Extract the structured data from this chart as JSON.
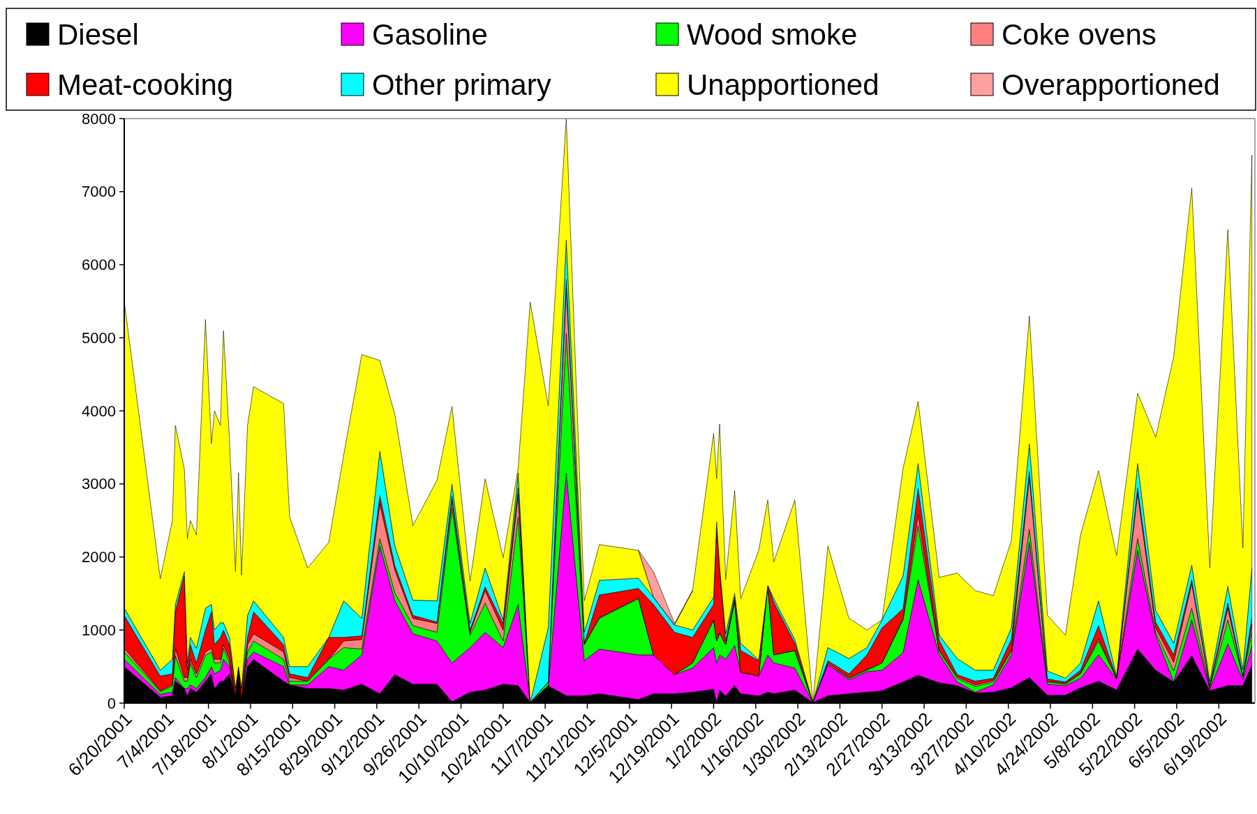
{
  "chart_data": {
    "type": "area",
    "stacked": true,
    "legend": "top",
    "grid": false,
    "x": [
      "2001-06-20",
      "2001-07-02",
      "2001-07-06",
      "2001-07-07",
      "2001-07-10",
      "2001-07-11",
      "2001-07-12",
      "2001-07-14",
      "2001-07-17",
      "2001-07-19",
      "2001-07-20",
      "2001-07-22",
      "2001-07-23",
      "2001-07-25",
      "2001-07-27",
      "2001-07-28",
      "2001-07-29",
      "2001-07-31",
      "2001-08-02",
      "2001-08-12",
      "2001-08-14",
      "2001-08-20",
      "2001-08-27",
      "2001-09-01",
      "2001-09-07",
      "2001-09-13",
      "2001-09-18",
      "2001-09-24",
      "2001-10-02",
      "2001-10-07",
      "2001-10-13",
      "2001-10-18",
      "2001-10-24",
      "2001-10-29",
      "2001-11-02",
      "2001-11-08",
      "2001-11-14",
      "2001-11-20",
      "2001-11-25",
      "2001-12-08",
      "2001-12-13",
      "2001-12-20",
      "2001-12-26",
      "2002-01-02",
      "2002-01-03",
      "2002-01-04",
      "2002-01-06",
      "2002-01-09",
      "2002-01-11",
      "2002-01-17",
      "2002-01-20",
      "2002-01-22",
      "2002-01-29",
      "2002-02-04",
      "2002-02-09",
      "2002-02-16",
      "2002-02-22",
      "2002-02-27",
      "2002-03-06",
      "2002-03-11",
      "2002-03-18",
      "2002-03-24",
      "2002-03-30",
      "2002-04-05",
      "2002-04-11",
      "2002-04-17",
      "2002-04-23",
      "2002-04-29",
      "2002-05-04",
      "2002-05-10",
      "2002-05-16",
      "2002-05-23",
      "2002-05-29",
      "2002-06-04",
      "2002-06-10",
      "2002-06-16",
      "2002-06-22",
      "2002-06-27",
      "2002-06-30"
    ],
    "xlim": [
      "2001-06-20",
      "2002-07-01"
    ],
    "xticks": [
      {
        "value": "2001-06-20",
        "label": "6/20/2001"
      },
      {
        "value": "2001-07-04",
        "label": "7/4/2001"
      },
      {
        "value": "2001-07-18",
        "label": "7/18/2001"
      },
      {
        "value": "2001-08-01",
        "label": "8/1/2001"
      },
      {
        "value": "2001-08-15",
        "label": "8/15/2001"
      },
      {
        "value": "2001-08-29",
        "label": "8/29/2001"
      },
      {
        "value": "2001-09-12",
        "label": "9/12/2001"
      },
      {
        "value": "2001-09-26",
        "label": "9/26/2001"
      },
      {
        "value": "2001-10-10",
        "label": "10/10/2001"
      },
      {
        "value": "2001-10-24",
        "label": "10/24/2001"
      },
      {
        "value": "2001-11-07",
        "label": "11/7/2001"
      },
      {
        "value": "2001-11-21",
        "label": "11/21/2001"
      },
      {
        "value": "2001-12-05",
        "label": "12/5/2001"
      },
      {
        "value": "2001-12-19",
        "label": "12/19/2001"
      },
      {
        "value": "2002-01-02",
        "label": "1/2/2002"
      },
      {
        "value": "2002-01-16",
        "label": "1/16/2002"
      },
      {
        "value": "2002-01-30",
        "label": "1/30/2002"
      },
      {
        "value": "2002-02-13",
        "label": "2/13/2002"
      },
      {
        "value": "2002-02-27",
        "label": "2/27/2002"
      },
      {
        "value": "2002-03-13",
        "label": "3/13/2002"
      },
      {
        "value": "2002-03-27",
        "label": "3/27/2002"
      },
      {
        "value": "2002-04-10",
        "label": "4/10/2002"
      },
      {
        "value": "2002-04-24",
        "label": "4/24/2002"
      },
      {
        "value": "2002-05-08",
        "label": "5/8/2002"
      },
      {
        "value": "2002-05-22",
        "label": "5/22/2002"
      },
      {
        "value": "2002-06-05",
        "label": "6/5/2002"
      },
      {
        "value": "2002-06-19",
        "label": "6/19/2002"
      }
    ],
    "ylim": [
      0,
      8000
    ],
    "yticks": [
      0,
      1000,
      2000,
      3000,
      4000,
      5000,
      6000,
      7000,
      8000
    ],
    "series": [
      {
        "name": "Diesel",
        "color": "#000000",
        "values": [
          500,
          80,
          100,
          300,
          200,
          100,
          200,
          150,
          300,
          400,
          200,
          300,
          300,
          400,
          100,
          500,
          50,
          500,
          600,
          300,
          250,
          200,
          200,
          180,
          260,
          130,
          390,
          260,
          260,
          20,
          150,
          180,
          260,
          240,
          10,
          240,
          100,
          100,
          130,
          50,
          130,
          130,
          150,
          190,
          10,
          180,
          100,
          240,
          130,
          100,
          150,
          130,
          180,
          10,
          100,
          130,
          150,
          170,
          290,
          380,
          280,
          240,
          140,
          150,
          210,
          350,
          110,
          110,
          210,
          300,
          180,
          740,
          450,
          290,
          650,
          170,
          240,
          240,
          520
        ]
      },
      {
        "name": "Gasoline",
        "color": "#ff00ff",
        "values": [
          100,
          40,
          50,
          50,
          0,
          100,
          50,
          50,
          50,
          100,
          200,
          150,
          300,
          100,
          0,
          0,
          0,
          100,
          100,
          200,
          0,
          50,
          300,
          270,
          400,
          2020,
          1010,
          690,
          590,
          530,
          610,
          790,
          500,
          1110,
          0,
          0,
          3050,
          480,
          610,
          610,
          530,
          260,
          330,
          570,
          540,
          480,
          500,
          550,
          290,
          270,
          510,
          420,
          300,
          0,
          430,
          190,
          280,
          280,
          400,
          1310,
          390,
          50,
          10,
          100,
          450,
          1850,
          150,
          130,
          130,
          360,
          150,
          1350,
          480,
          0,
          490,
          20,
          570,
          80,
          270
        ]
      },
      {
        "name": "Wood smoke",
        "color": "#00ff00",
        "values": [
          100,
          40,
          80,
          300,
          100,
          100,
          300,
          150,
          300,
          200,
          150,
          100,
          150,
          50,
          0,
          0,
          0,
          100,
          150,
          100,
          50,
          50,
          100,
          310,
          80,
          100,
          110,
          110,
          120,
          2120,
          170,
          400,
          90,
          1200,
          0,
          50,
          1910,
          220,
          420,
          770,
          0,
          0,
          70,
          380,
          300,
          300,
          200,
          610,
          0,
          0,
          950,
          110,
          240,
          0,
          0,
          20,
          20,
          100,
          450,
          740,
          50,
          50,
          80,
          40,
          60,
          180,
          30,
          20,
          60,
          190,
          10,
          160,
          40,
          150,
          160,
          20,
          330,
          40,
          180
        ]
      },
      {
        "name": "Coke ovens",
        "color": "#ff8080",
        "values": [
          50,
          10,
          20,
          100,
          50,
          50,
          50,
          50,
          50,
          50,
          50,
          50,
          50,
          50,
          0,
          0,
          0,
          100,
          100,
          100,
          50,
          0,
          0,
          90,
          130,
          480,
          310,
          100,
          120,
          110,
          40,
          170,
          150,
          300,
          0,
          0,
          640,
          10,
          10,
          10,
          0,
          0,
          0,
          0,
          0,
          0,
          0,
          0,
          0,
          10,
          0,
          0,
          0,
          0,
          20,
          10,
          10,
          0,
          20,
          150,
          0,
          20,
          20,
          20,
          0,
          720,
          10,
          10,
          10,
          30,
          0,
          630,
          60,
          120,
          340,
          20,
          160,
          10,
          100
        ]
      },
      {
        "name": "Meat-cooking",
        "color": "#ff0000",
        "values": [
          450,
          200,
          150,
          500,
          1400,
          100,
          200,
          150,
          300,
          500,
          200,
          300,
          200,
          200,
          100,
          0,
          150,
          100,
          300,
          100,
          50,
          50,
          300,
          50,
          50,
          110,
          60,
          40,
          20,
          60,
          30,
          50,
          90,
          100,
          0,
          0,
          100,
          10,
          310,
          130,
          690,
          580,
          350,
          210,
          1580,
          860,
          50,
          50,
          300,
          200,
          0,
          720,
          100,
          0,
          30,
          50,
          200,
          480,
          130,
          360,
          140,
          30,
          50,
          30,
          150,
          70,
          30,
          20,
          40,
          180,
          10,
          70,
          80,
          100,
          50,
          20,
          70,
          10,
          100
        ]
      },
      {
        "name": "Other primary",
        "color": "#00ffff",
        "values": [
          100,
          80,
          200,
          100,
          50,
          100,
          100,
          200,
          300,
          100,
          200,
          200,
          100,
          100,
          0,
          0,
          0,
          300,
          150,
          100,
          100,
          150,
          0,
          500,
          240,
          610,
          270,
          210,
          290,
          160,
          90,
          260,
          50,
          200,
          0,
          740,
          540,
          150,
          200,
          140,
          100,
          100,
          100,
          100,
          50,
          50,
          100,
          50,
          100,
          10,
          0,
          50,
          50,
          0,
          180,
          210,
          100,
          110,
          450,
          340,
          70,
          220,
          150,
          110,
          160,
          380,
          110,
          50,
          100,
          340,
          20,
          330,
          160,
          160,
          200,
          50,
          230,
          80,
          680
        ]
      },
      {
        "name": "Unapportioned",
        "color": "#ffff00",
        "values": [
          4200,
          1250,
          1900,
          2450,
          1400,
          1700,
          1600,
          1550,
          3950,
          2200,
          3000,
          2700,
          4000,
          2700,
          1600,
          2650,
          1550,
          2600,
          2930,
          3200,
          2050,
          1350,
          1300,
          2000,
          3610,
          1240,
          1800,
          1020,
          1650,
          1060,
          580,
          1220,
          850,
          60,
          5480,
          3040,
          1660,
          430,
          490,
          380,
          0,
          0,
          540,
          2240,
          590,
          1950,
          740,
          1410,
          610,
          1500,
          1170,
          500,
          1910,
          0,
          1390,
          550,
          240,
          0,
          1470,
          850,
          790,
          1170,
          1090,
          1020,
          1190,
          1750,
          760,
          590,
          1750,
          1780,
          1650,
          960,
          2370,
          3920,
          5160,
          1550,
          4880,
          1660,
          5650
        ]
      },
      {
        "name": "Overapportioned",
        "color": "#ffa0a0",
        "values": [
          null,
          null,
          null,
          null,
          null,
          null,
          null,
          null,
          null,
          null,
          null,
          null,
          null,
          null,
          null,
          null,
          null,
          null,
          null,
          null,
          null,
          null,
          null,
          null,
          null,
          null,
          null,
          null,
          null,
          null,
          null,
          null,
          null,
          null,
          null,
          null,
          null,
          null,
          null,
          0,
          350,
          20,
          0,
          null,
          null,
          null,
          null,
          null,
          null,
          null,
          null,
          null,
          null,
          null,
          null,
          null,
          null,
          null,
          null,
          null,
          null,
          null,
          null,
          null,
          null,
          null,
          null,
          null,
          null,
          null,
          null,
          null,
          null,
          null,
          null,
          null,
          null,
          null,
          null
        ]
      }
    ]
  }
}
